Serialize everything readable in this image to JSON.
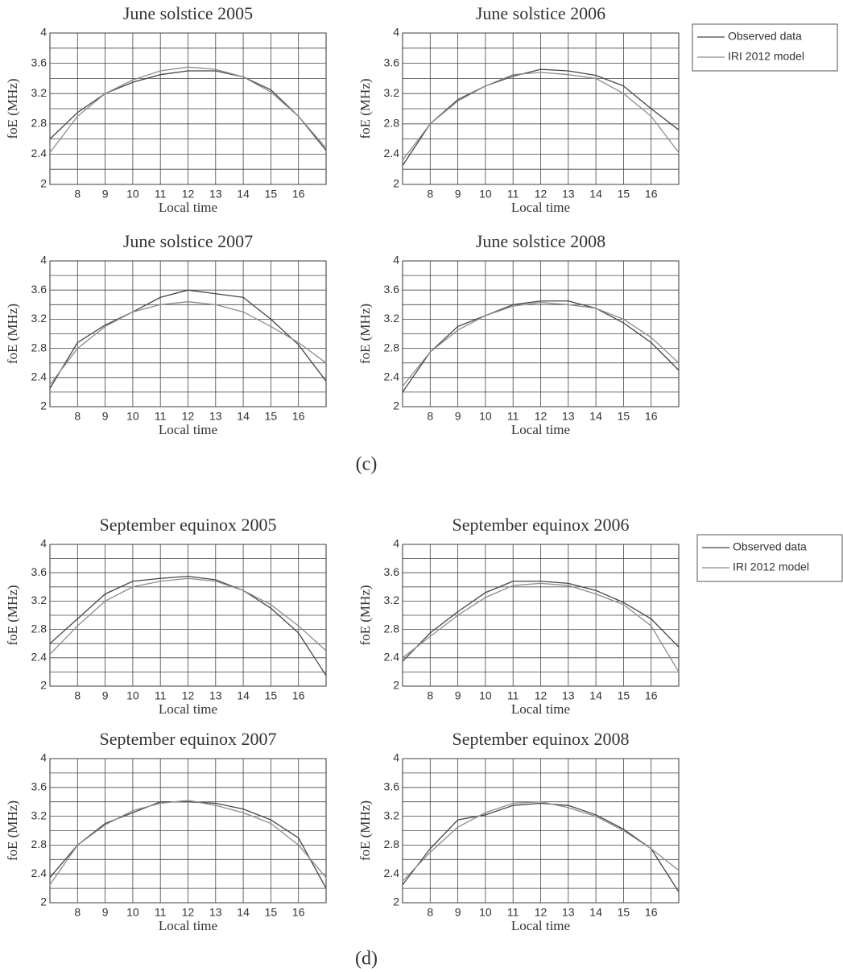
{
  "chart_data": [
    {
      "type": "line",
      "title": "June solstice 2005",
      "x_label": "Local time",
      "y_label": "foE (MHz)",
      "x": [
        7,
        8,
        9,
        10,
        11,
        12,
        13,
        14,
        15,
        16,
        17
      ],
      "xlim": [
        7,
        17
      ],
      "ylim": [
        2,
        4
      ],
      "xticks": [
        8,
        9,
        10,
        11,
        12,
        13,
        14,
        15,
        16
      ],
      "yticks": [
        2,
        2.4,
        2.8,
        3.2,
        3.6,
        4
      ],
      "y_minor_grid": [
        2.2,
        2.6,
        3.0,
        3.4,
        3.8
      ],
      "grid": true,
      "series": [
        {
          "color": "#454545",
          "values": [
            2.6,
            2.95,
            3.2,
            3.35,
            3.45,
            3.5,
            3.5,
            3.42,
            3.25,
            2.9,
            2.45
          ]
        },
        {
          "color": "#8c8c8c",
          "values": [
            2.42,
            2.9,
            3.2,
            3.38,
            3.5,
            3.55,
            3.52,
            3.42,
            3.22,
            2.9,
            2.48
          ]
        }
      ]
    },
    {
      "type": "line",
      "title": "June solstice 2006",
      "x_label": "Local time",
      "y_label": "foE (MHz)",
      "x": [
        7,
        8,
        9,
        10,
        11,
        12,
        13,
        14,
        15,
        16,
        17
      ],
      "xlim": [
        7,
        17
      ],
      "ylim": [
        2,
        4
      ],
      "xticks": [
        8,
        9,
        10,
        11,
        12,
        13,
        14,
        15,
        16
      ],
      "yticks": [
        2,
        2.4,
        2.8,
        3.2,
        3.6,
        4
      ],
      "y_minor_grid": [
        2.2,
        2.6,
        3.0,
        3.4,
        3.8
      ],
      "grid": true,
      "legend": "outside-right",
      "series": [
        {
          "name": "Observed data",
          "color": "#454545",
          "values": [
            2.25,
            2.8,
            3.12,
            3.3,
            3.43,
            3.52,
            3.5,
            3.44,
            3.3,
            3.0,
            2.72
          ]
        },
        {
          "name": "IRI 2012 model",
          "color": "#8c8c8c",
          "values": [
            2.32,
            2.8,
            3.1,
            3.3,
            3.45,
            3.48,
            3.45,
            3.4,
            3.2,
            2.9,
            2.42
          ]
        }
      ]
    },
    {
      "type": "line",
      "title": "June solstice 2007",
      "x_label": "Local time",
      "y_label": "foE (MHz)",
      "x": [
        7,
        8,
        9,
        10,
        11,
        12,
        13,
        14,
        15,
        16,
        17
      ],
      "xlim": [
        7,
        17
      ],
      "ylim": [
        2,
        4
      ],
      "xticks": [
        8,
        9,
        10,
        11,
        12,
        13,
        14,
        15,
        16
      ],
      "yticks": [
        2,
        2.4,
        2.8,
        3.2,
        3.6,
        4
      ],
      "y_minor_grid": [
        2.2,
        2.6,
        3.0,
        3.4,
        3.8
      ],
      "grid": true,
      "series": [
        {
          "color": "#454545",
          "values": [
            2.25,
            2.88,
            3.12,
            3.3,
            3.5,
            3.6,
            3.55,
            3.5,
            3.2,
            2.85,
            2.35
          ]
        },
        {
          "color": "#8c8c8c",
          "values": [
            2.3,
            2.8,
            3.1,
            3.3,
            3.4,
            3.44,
            3.4,
            3.3,
            3.1,
            2.88,
            2.6
          ]
        }
      ]
    },
    {
      "type": "line",
      "title": "June solstice 2008",
      "x_label": "Local time",
      "y_label": "foE (MHz)",
      "x": [
        7,
        8,
        9,
        10,
        11,
        12,
        13,
        14,
        15,
        16,
        17
      ],
      "xlim": [
        7,
        17
      ],
      "ylim": [
        2,
        4
      ],
      "xticks": [
        8,
        9,
        10,
        11,
        12,
        13,
        14,
        15,
        16
      ],
      "yticks": [
        2,
        2.4,
        2.8,
        3.2,
        3.6,
        4
      ],
      "y_minor_grid": [
        2.2,
        2.6,
        3.0,
        3.4,
        3.8
      ],
      "grid": true,
      "series": [
        {
          "color": "#454545",
          "values": [
            2.2,
            2.75,
            3.1,
            3.25,
            3.4,
            3.45,
            3.45,
            3.35,
            3.15,
            2.88,
            2.5
          ]
        },
        {
          "color": "#8c8c8c",
          "values": [
            2.28,
            2.75,
            3.05,
            3.25,
            3.38,
            3.43,
            3.4,
            3.35,
            3.2,
            2.95,
            2.6
          ]
        }
      ]
    },
    {
      "type": "line",
      "title": "September equinox 2005",
      "x_label": "Local time",
      "y_label": "foE (MHz)",
      "x": [
        7,
        8,
        9,
        10,
        11,
        12,
        13,
        14,
        15,
        16,
        17
      ],
      "xlim": [
        7,
        17
      ],
      "ylim": [
        2,
        4
      ],
      "xticks": [
        8,
        9,
        10,
        11,
        12,
        13,
        14,
        15,
        16
      ],
      "yticks": [
        2,
        2.4,
        2.8,
        3.2,
        3.6,
        4
      ],
      "y_minor_grid": [
        2.2,
        2.6,
        3.0,
        3.4,
        3.8
      ],
      "grid": true,
      "series": [
        {
          "color": "#454545",
          "values": [
            2.6,
            2.95,
            3.3,
            3.48,
            3.52,
            3.55,
            3.5,
            3.35,
            3.1,
            2.75,
            2.15
          ]
        },
        {
          "color": "#8c8c8c",
          "values": [
            2.45,
            2.85,
            3.2,
            3.4,
            3.48,
            3.52,
            3.48,
            3.35,
            3.15,
            2.85,
            2.5
          ]
        }
      ]
    },
    {
      "type": "line",
      "title": "September equinox 2006",
      "x_label": "Local time",
      "y_label": "foE (MHz)",
      "x": [
        7,
        8,
        9,
        10,
        11,
        12,
        13,
        14,
        15,
        16,
        17
      ],
      "xlim": [
        7,
        17
      ],
      "ylim": [
        2,
        4
      ],
      "xticks": [
        8,
        9,
        10,
        11,
        12,
        13,
        14,
        15,
        16
      ],
      "yticks": [
        2,
        2.4,
        2.8,
        3.2,
        3.6,
        4
      ],
      "y_minor_grid": [
        2.2,
        2.6,
        3.0,
        3.4,
        3.8
      ],
      "grid": true,
      "legend": "outside-right",
      "series": [
        {
          "name": "Observed data",
          "color": "#454545",
          "values": [
            2.35,
            2.75,
            3.05,
            3.32,
            3.48,
            3.48,
            3.45,
            3.35,
            3.18,
            2.95,
            2.55
          ]
        },
        {
          "name": "IRI 2012 model",
          "color": "#8c8c8c",
          "values": [
            2.4,
            2.7,
            3.0,
            3.25,
            3.42,
            3.45,
            3.42,
            3.3,
            3.15,
            2.85,
            2.2
          ]
        }
      ]
    },
    {
      "type": "line",
      "title": "September equinox 2007",
      "x_label": "Local time",
      "y_label": "foE (MHz)",
      "x": [
        7,
        8,
        9,
        10,
        11,
        12,
        13,
        14,
        15,
        16,
        17
      ],
      "xlim": [
        7,
        17
      ],
      "ylim": [
        2,
        4
      ],
      "xticks": [
        8,
        9,
        10,
        11,
        12,
        13,
        14,
        15,
        16
      ],
      "yticks": [
        2,
        2.4,
        2.8,
        3.2,
        3.6,
        4
      ],
      "y_minor_grid": [
        2.2,
        2.6,
        3.0,
        3.4,
        3.8
      ],
      "grid": true,
      "series": [
        {
          "color": "#454545",
          "values": [
            2.35,
            2.8,
            3.1,
            3.25,
            3.4,
            3.4,
            3.38,
            3.3,
            3.15,
            2.9,
            2.2
          ]
        },
        {
          "color": "#8c8c8c",
          "values": [
            2.25,
            2.8,
            3.08,
            3.28,
            3.38,
            3.42,
            3.35,
            3.25,
            3.1,
            2.8,
            2.35
          ]
        }
      ]
    },
    {
      "type": "line",
      "title": "September equinox 2008",
      "x_label": "Local time",
      "y_label": "foE (MHz)",
      "x": [
        7,
        8,
        9,
        10,
        11,
        12,
        13,
        14,
        15,
        16,
        17
      ],
      "xlim": [
        7,
        17
      ],
      "ylim": [
        2,
        4
      ],
      "xticks": [
        8,
        9,
        10,
        11,
        12,
        13,
        14,
        15,
        16
      ],
      "yticks": [
        2,
        2.4,
        2.8,
        3.2,
        3.6,
        4
      ],
      "y_minor_grid": [
        2.2,
        2.6,
        3.0,
        3.4,
        3.8
      ],
      "grid": true,
      "series": [
        {
          "color": "#454545",
          "values": [
            2.25,
            2.75,
            3.15,
            3.22,
            3.35,
            3.38,
            3.35,
            3.22,
            3.02,
            2.75,
            2.15
          ]
        },
        {
          "color": "#8c8c8c",
          "values": [
            2.3,
            2.7,
            3.05,
            3.25,
            3.38,
            3.4,
            3.32,
            3.2,
            3.0,
            2.75,
            2.45
          ]
        }
      ]
    }
  ],
  "panel_labels": [
    "(c)",
    "(d)"
  ]
}
